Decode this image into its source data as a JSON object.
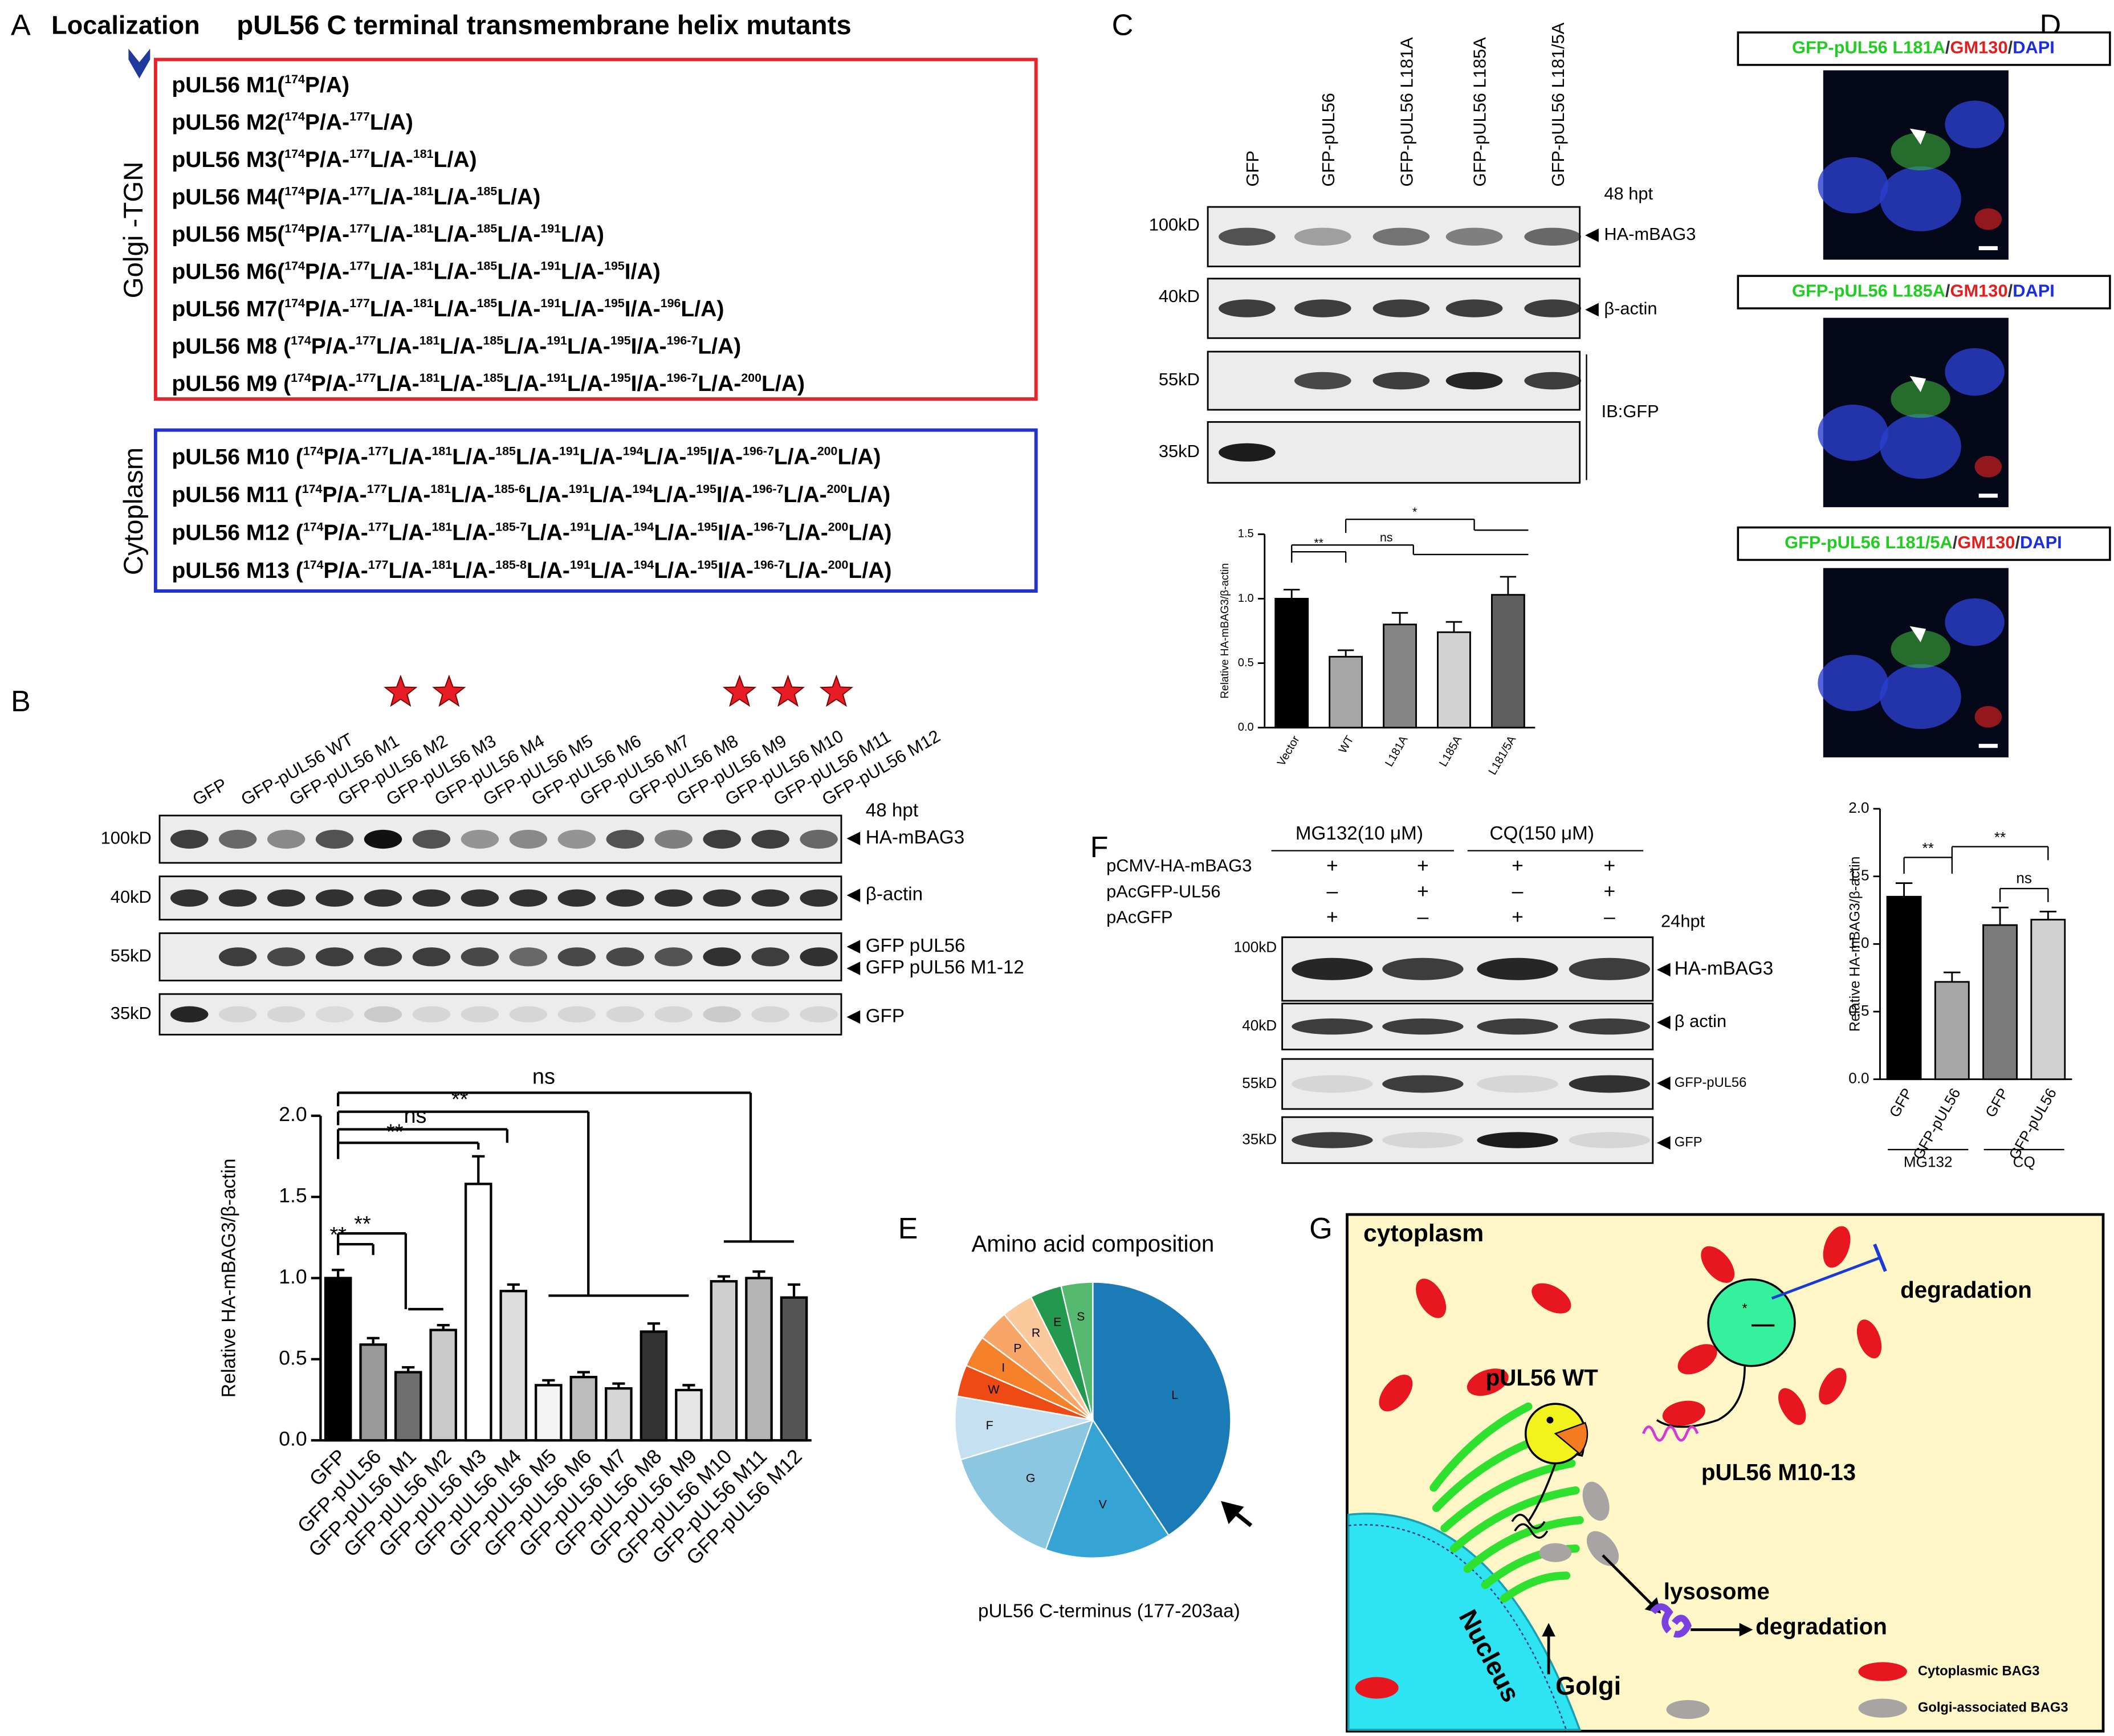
{
  "A": {
    "label": "A",
    "localization": "Localization",
    "title": "pUL56 C terminal transmembrane helix mutants",
    "golgi": "Golgi -TGN",
    "cytoplasm": "Cytoplasm",
    "golgi_mutants": [
      {
        "name": "pUL56 M1",
        "parts": [
          "(",
          "174",
          "P/A)"
        ]
      },
      {
        "name": "pUL56 M2",
        "parts": [
          "(",
          "174",
          "P/A-",
          "177",
          "L/A)"
        ]
      },
      {
        "name": "pUL56 M3",
        "parts": [
          "(",
          "174",
          "P/A-",
          "177",
          "L/A-",
          "181",
          "L/A)"
        ]
      },
      {
        "name": "pUL56 M4",
        "parts": [
          "(",
          "174",
          "P/A-",
          "177",
          "L/A-",
          "181",
          "L/A-",
          "185",
          "L/A)"
        ]
      },
      {
        "name": "pUL56 M5",
        "parts": [
          "(",
          "174",
          "P/A-",
          "177",
          "L/A-",
          "181",
          "L/A-",
          "185",
          "L/A-",
          "191",
          "L/A)"
        ]
      },
      {
        "name": "pUL56 M6",
        "parts": [
          "(",
          "174",
          "P/A-",
          "177",
          "L/A-",
          "181",
          "L/A-",
          "185",
          "L/A-",
          "191",
          "L/A-",
          "195",
          "I/A)"
        ]
      },
      {
        "name": "pUL56 M7",
        "parts": [
          "(",
          "174",
          "P/A-",
          "177",
          "L/A-",
          "181",
          "L/A-",
          "185",
          "L/A-",
          "191",
          "L/A-",
          "195",
          "I/A-",
          "196",
          "L/A)"
        ]
      },
      {
        "name": "pUL56 M8",
        "parts": [
          " (",
          "174",
          "P/A-",
          "177",
          "L/A-",
          "181",
          "L/A-",
          "185",
          "L/A-",
          "191",
          "L/A-",
          "195",
          "I/A-",
          "196-7",
          "L/A)"
        ]
      },
      {
        "name": "pUL56 M9",
        "parts": [
          " (",
          "174",
          "P/A-",
          "177",
          "L/A-",
          "181",
          "L/A-",
          "185",
          "L/A-",
          "191",
          "L/A-",
          "195",
          "I/A-",
          "196-7",
          "L/A-",
          "200",
          "L/A)"
        ]
      }
    ],
    "cyto_mutants": [
      {
        "name": "pUL56 M10",
        "parts": [
          " (",
          "174",
          "P/A-",
          "177",
          "L/A-",
          "181",
          "L/A-",
          "185",
          "L/A-",
          "191",
          "L/A-",
          "194",
          "L/A-",
          "195",
          "I/A-",
          "196-7",
          "L/A-",
          "200",
          "L/A)"
        ]
      },
      {
        "name": "pUL56 M11",
        "parts": [
          " (",
          "174",
          "P/A-",
          "177",
          "L/A-",
          "181",
          "L/A-",
          "185-6",
          "L/A-",
          "191",
          "L/A-",
          "194",
          "L/A-",
          "195",
          "I/A-",
          "196-7",
          "L/A-",
          "200",
          "L/A)"
        ]
      },
      {
        "name": "pUL56 M12",
        "parts": [
          " (",
          "174",
          "P/A-",
          "177",
          "L/A-",
          "181",
          "L/A-",
          "185-7",
          "L/A-",
          "191",
          "L/A-",
          "194",
          "L/A-",
          "195",
          "I/A-",
          "196-7",
          "L/A-",
          "200",
          "L/A)"
        ]
      },
      {
        "name": "pUL56 M13",
        "parts": [
          " (",
          "174",
          "P/A-",
          "177",
          "L/A-",
          "181",
          "L/A-",
          "185-8",
          "L/A-",
          "191",
          "L/A-",
          "194",
          "L/A-",
          "195",
          "I/A-",
          "196-7",
          "L/A-",
          "200",
          "L/A)"
        ]
      }
    ]
  },
  "B": {
    "label": "B",
    "lanes": [
      "GFP",
      "GFP-pUL56 WT",
      "GFP-pUL56 M1",
      "GFP-pUL56 M2",
      "GFP-pUL56 M3",
      "GFP-pUL56 M4",
      "GFP-pUL56 M5",
      "GFP-pUL56 M6",
      "GFP-pUL56 M7",
      "GFP-pUL56 M8",
      "GFP-pUL56 M9",
      "GFP-pUL56 M10",
      "GFP-pUL56 M11",
      "GFP-pUL56 M12"
    ],
    "time": "48 hpt",
    "markers": [
      "100kD",
      "40kD",
      "55kD",
      "35kD"
    ],
    "bands": [
      "HA-mBAG3",
      "β-actin",
      "GFP pUL56",
      "GFP pUL56 M1-12",
      "GFP"
    ],
    "chart": {
      "type": "bar",
      "ylabel": "Relative HA-mBAG3/β-actin",
      "categories": [
        "GFP",
        "GFP-pUL56",
        "GFP-pUL56 M1",
        "GFP-pUL56 M2",
        "GFP-pUL56 M3",
        "GFP-pUL56 M4",
        "GFP-pUL56 M5",
        "GFP-pUL56 M6",
        "GFP-pUL56 M7",
        "GFP-pUL56 M8",
        "GFP-pUL56 M9",
        "GFP-pUL56 M10",
        "GFP-pUL56 M11",
        "GFP-pUL56 M12"
      ],
      "values": [
        1.0,
        0.59,
        0.42,
        0.68,
        1.58,
        0.92,
        0.34,
        0.39,
        0.32,
        0.67,
        0.31,
        0.98,
        1.0,
        0.88
      ],
      "errors": [
        0.05,
        0.04,
        0.03,
        0.03,
        0.17,
        0.04,
        0.03,
        0.03,
        0.03,
        0.05,
        0.03,
        0.03,
        0.04,
        0.08
      ],
      "colors": [
        "#000000",
        "#9a9a9a",
        "#6e6e6e",
        "#c9c9c9",
        "#ffffff",
        "#dddddd",
        "#f4f4f4",
        "#bdbdbd",
        "#d6d6d6",
        "#333333",
        "#e6e6e6",
        "#cfcfcf",
        "#b5b5b5",
        "#555555"
      ],
      "ylim": [
        0,
        2.0
      ],
      "yticks": [
        {
          "value": 0,
          "label": "0.0"
        },
        0.5,
        {
          "value": 1,
          "label": "1.0"
        },
        1.5,
        {
          "value": 2,
          "label": "2.0"
        }
      ],
      "significance": [
        "**",
        "**",
        "**",
        "ns",
        "**",
        "ns"
      ]
    }
  },
  "C": {
    "label": "C",
    "lanes": [
      "GFP",
      "GFP-pUL56",
      "GFP-pUL56 L181A",
      "GFP-pUL56 L185A",
      "GFP-pUL56 L181/5A"
    ],
    "time": "48 hpt",
    "markers": [
      "100kD",
      "40kD",
      "55kD",
      "35kD"
    ],
    "bands": [
      "HA-mBAG3",
      "β-actin",
      "IB:GFP"
    ],
    "chart": {
      "type": "bar",
      "ylabel": "Relative HA-mBAG3/β-actin",
      "categories": [
        "Vector",
        "WT",
        "L181A",
        "L185A",
        "L181/5A"
      ],
      "values": [
        1.0,
        0.55,
        0.8,
        0.74,
        1.03
      ],
      "errors": [
        0.07,
        0.05,
        0.09,
        0.08,
        0.14
      ],
      "colors": [
        "#000000",
        "#a6a6a6",
        "#858585",
        "#d2d2d2",
        "#5e5e5e"
      ],
      "ylim": [
        0,
        1.5
      ],
      "yticks": [
        {
          "value": 0,
          "label": "0.0"
        },
        0.5,
        {
          "value": 1,
          "label": "1.0"
        },
        1.5
      ],
      "significance": [
        "**",
        "ns",
        "*"
      ]
    }
  },
  "D": {
    "label": "D",
    "titles": [
      [
        "GFP-pUL56 L181A",
        "/",
        "GM130",
        "/",
        "DAPI"
      ],
      [
        "GFP-pUL56 L185A",
        "/",
        "GM130",
        "/",
        "DAPI"
      ],
      [
        "GFP-pUL56 L181/5A",
        "/",
        "GM130",
        "/",
        "DAPI"
      ]
    ],
    "title_colors": [
      "#22cc22",
      "#333333",
      "#e02020",
      "#333333",
      "#1a2ee0"
    ]
  },
  "E": {
    "label": "E",
    "chart": {
      "type": "pie",
      "title": "Amino acid composition",
      "caption": "pUL56 C-terminus (177-203aa)",
      "categories": [
        "L",
        "V",
        "G",
        "F",
        "W",
        "I",
        "P",
        "R",
        "E",
        "S"
      ],
      "values": [
        11,
        4,
        4,
        2,
        1,
        1,
        1,
        1,
        1,
        1
      ],
      "colors": [
        "#1a7bb6",
        "#35a3d4",
        "#8cc7e2",
        "#c5e0f0",
        "#ee4b14",
        "#f5822b",
        "#f8a667",
        "#fbc99c",
        "#23994f",
        "#55b96f"
      ]
    }
  },
  "F": {
    "label": "F",
    "treatments": [
      "MG132(10 μM)",
      "CQ(150 μM)"
    ],
    "rows": [
      {
        "label": "pCMV-HA-mBAG3",
        "signs": [
          "+",
          "+",
          "+",
          "+"
        ]
      },
      {
        "label": "pAcGFP-UL56",
        "signs": [
          "–",
          "+",
          "–",
          "+"
        ]
      },
      {
        "label": "pAcGFP",
        "signs": [
          "+",
          "–",
          "+",
          "–"
        ]
      }
    ],
    "time": "24hpt",
    "markers": [
      "100kD",
      "40kD",
      "55kD",
      "35kD"
    ],
    "bands": [
      "HA-mBAG3",
      "β actin",
      "GFP-pUL56",
      "GFP"
    ],
    "chart": {
      "type": "bar",
      "ylabel": "Relative HA-mBAG3/β-actin",
      "categories": [
        "GFP",
        "GFP-pUL56",
        "GFP",
        "GFP-pUL56"
      ],
      "groups": [
        "MG132",
        "CQ"
      ],
      "values": [
        1.35,
        0.72,
        1.14,
        1.18
      ],
      "errors": [
        0.1,
        0.07,
        0.13,
        0.06
      ],
      "colors": [
        "#000000",
        "#a6a6a6",
        "#7a7a7a",
        "#d0d0d0"
      ],
      "ylim": [
        0,
        2.0
      ],
      "yticks": [
        {
          "value": 0,
          "label": "0.0"
        },
        0.5,
        {
          "value": 1,
          "label": "1.0"
        },
        1.5,
        {
          "value": 2,
          "label": "2.0"
        }
      ],
      "significance": [
        "**",
        "**",
        "ns"
      ]
    }
  },
  "G": {
    "label": "G",
    "cytoplasm": "cytoplasm",
    "degradation_top": "degradation",
    "wt": "pUL56 WT",
    "mutant": "pUL56 M10-13",
    "lysosome": "lysosome",
    "degradation_bottom": "degradation",
    "nucleus": "Nucleus",
    "golgi": "Golgi",
    "legend": [
      "Cytoplasmic BAG3",
      "Golgi-associated BAG3"
    ]
  }
}
